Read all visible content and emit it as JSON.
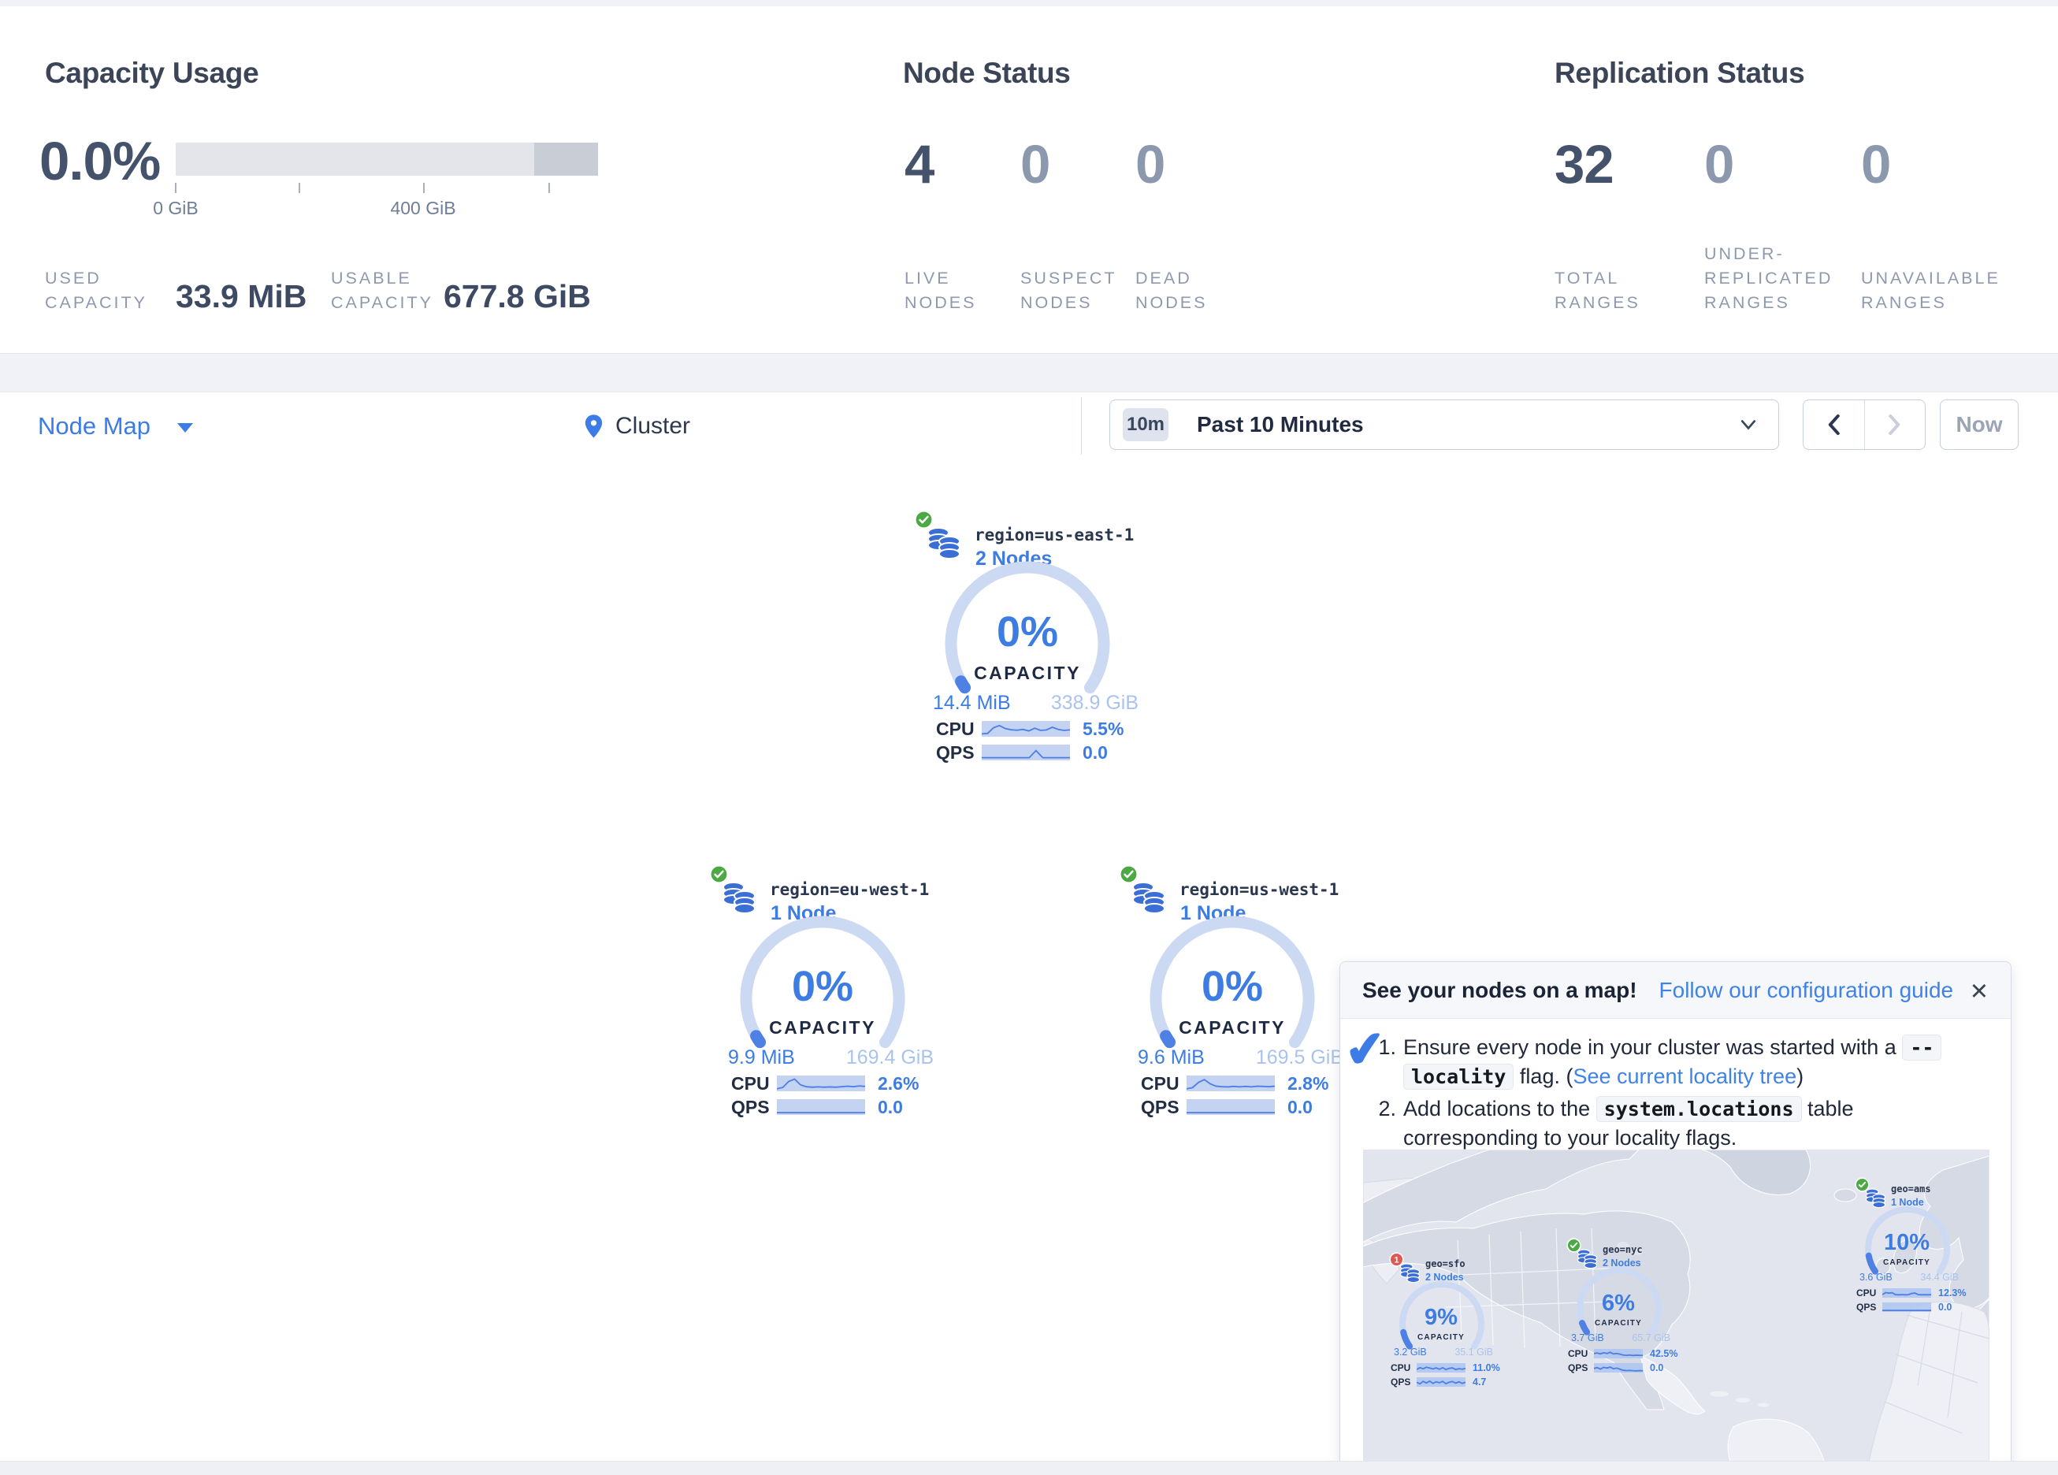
{
  "summary": {
    "capacity": {
      "title": "Capacity Usage",
      "percent": "0.0%",
      "tick_labels": [
        "0 GiB",
        "400 GiB"
      ],
      "used_label": "USED CAPACITY",
      "used_value": "33.9 MiB",
      "usable_label": "USABLE CAPACITY",
      "usable_value": "677.8 GiB"
    },
    "node_status": {
      "title": "Node Status",
      "stats": [
        {
          "value": "4",
          "label": "LIVE NODES"
        },
        {
          "value": "0",
          "label": "SUSPECT NODES"
        },
        {
          "value": "0",
          "label": "DEAD NODES"
        }
      ]
    },
    "replication": {
      "title": "Replication Status",
      "stats": [
        {
          "value": "32",
          "label": "TOTAL RANGES"
        },
        {
          "value": "0",
          "label": "UNDER-REPLICATED RANGES"
        },
        {
          "value": "0",
          "label": "UNAVAILABLE RANGES"
        }
      ]
    }
  },
  "toolbar": {
    "view_selector": "Node Map",
    "breadcrumb": "Cluster",
    "time_badge": "10m",
    "time_range": "Past 10 Minutes",
    "now_button": "Now"
  },
  "map": {
    "capacity_word": "CAPACITY",
    "cpu_label": "CPU",
    "qps_label": "QPS",
    "regions": [
      {
        "name": "region=us-east-1",
        "nodes_label": "2 Nodes",
        "capacity_pct": 0,
        "capacity_pct_label": "0%",
        "used": "14.4 MiB",
        "total": "338.9 GiB",
        "cpu": "5.5%",
        "qps": "0.0",
        "cpu_spark": [
          0.12,
          0.15,
          0.62,
          0.8,
          0.55,
          0.45,
          0.42,
          0.48,
          0.36,
          0.58,
          0.4,
          0.44,
          0.66,
          0.48,
          0.4,
          0.44
        ],
        "qps_spark": [
          0.1,
          0.1,
          0.1,
          0.1,
          0.1,
          0.1,
          0.1,
          0.1,
          0.68,
          0.1,
          0.1,
          0.1,
          0.1,
          0.1
        ]
      },
      {
        "name": "region=eu-west-1",
        "nodes_label": "1 Node",
        "capacity_pct": 0,
        "capacity_pct_label": "0%",
        "used": "9.9 MiB",
        "total": "169.4 GiB",
        "cpu": "2.6%",
        "qps": "0.0",
        "cpu_spark": [
          0.08,
          0.2,
          0.68,
          0.88,
          0.42,
          0.26,
          0.22,
          0.25,
          0.22,
          0.24,
          0.22,
          0.26,
          0.3,
          0.26,
          0.32,
          0.28
        ],
        "qps_spark": [
          0.07,
          0.07,
          0.07,
          0.07,
          0.07,
          0.07,
          0.07,
          0.07,
          0.07,
          0.07,
          0.07,
          0.07,
          0.07,
          0.07
        ]
      },
      {
        "name": "region=us-west-1",
        "nodes_label": "1 Node",
        "capacity_pct": 0,
        "capacity_pct_label": "0%",
        "used": "9.6 MiB",
        "total": "169.5 GiB",
        "cpu": "2.8%",
        "qps": "0.0",
        "cpu_spark": [
          0.08,
          0.18,
          0.6,
          0.84,
          0.5,
          0.3,
          0.26,
          0.24,
          0.28,
          0.25,
          0.28,
          0.25,
          0.3,
          0.28,
          0.26,
          0.3
        ],
        "qps_spark": [
          0.07,
          0.07,
          0.07,
          0.07,
          0.07,
          0.07,
          0.07,
          0.07,
          0.07,
          0.07,
          0.07,
          0.07,
          0.07,
          0.07
        ]
      }
    ]
  },
  "popup": {
    "title": "See your nodes on a map!",
    "link": "Follow our configuration guide",
    "close_icon": "✕",
    "check_icon": "✔",
    "step1": {
      "num": "1.",
      "pre": "Ensure every node in your cluster was started with a ",
      "code_a": "--",
      "code_b": "locality",
      "mid": " flag. (",
      "link": "See current locality tree",
      "post": ")"
    },
    "step2": {
      "num": "2.",
      "pre": "Add locations to the ",
      "code": "system.locations",
      "post": " table corresponding to your locality flags."
    },
    "mini_nodes": [
      {
        "name": "geo=sfo",
        "nodes_label": "2 Nodes",
        "status": "warn",
        "badge": "1",
        "capacity_pct": 9,
        "capacity_pct_label": "9%",
        "used": "3.2 GiB",
        "total": "35.1 GiB",
        "cpu": "11.0%",
        "qps": "4.7",
        "cpu_spark": [
          0.3,
          0.55,
          0.4,
          0.62,
          0.5,
          0.38,
          0.52,
          0.34,
          0.56,
          0.3,
          0.46,
          0.52,
          0.3,
          0.42,
          0.34,
          0.46
        ],
        "qps_spark": [
          0.5,
          0.28,
          0.62,
          0.4,
          0.66,
          0.34,
          0.56,
          0.44,
          0.62,
          0.3,
          0.5,
          0.6,
          0.38,
          0.56,
          0.34,
          0.5
        ]
      },
      {
        "name": "geo=nyc",
        "nodes_label": "2 Nodes",
        "status": "ok",
        "capacity_pct": 6,
        "capacity_pct_label": "6%",
        "used": "3.7 GiB",
        "total": "65.7 GiB",
        "cpu": "42.5%",
        "qps": "0.0",
        "cpu_spark": [
          0.55,
          0.62,
          0.5,
          0.66,
          0.55,
          0.72,
          0.5,
          0.56,
          0.46,
          0.34,
          0.3,
          0.34,
          0.28,
          0.32,
          0.3,
          0.28
        ],
        "qps_spark": [
          0.45,
          0.56,
          0.36,
          0.6,
          0.5,
          0.64,
          0.4,
          0.5,
          0.34,
          0.2,
          0.15,
          0.18,
          0.14,
          0.12,
          0.15,
          0.12
        ]
      },
      {
        "name": "geo=ams",
        "nodes_label": "1 Node",
        "status": "ok",
        "capacity_pct": 10,
        "capacity_pct_label": "10%",
        "used": "3.6 GiB",
        "total": "34.4 GiB",
        "cpu": "12.3%",
        "qps": "0.0",
        "cpu_spark": [
          0.3,
          0.58,
          0.52,
          0.56,
          0.32,
          0.28,
          0.3,
          0.28,
          0.3,
          0.46,
          0.52,
          0.32,
          0.28,
          0.3,
          0.28,
          0.3
        ],
        "qps_spark": [
          0.08,
          0.08,
          0.08,
          0.08,
          0.08,
          0.08,
          0.08,
          0.08,
          0.08,
          0.08,
          0.08,
          0.08,
          0.08,
          0.08
        ]
      }
    ]
  }
}
